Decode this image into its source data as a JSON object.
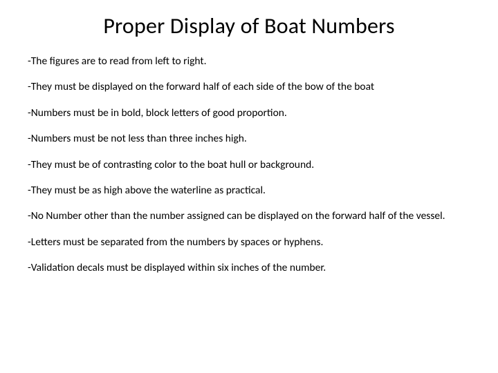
{
  "title": "Proper Display of Boat Numbers",
  "title_fontsize": 32,
  "title_color": "#000000",
  "body_fontsize": 15.5,
  "body_color": "#000000",
  "background_color": "#ffffff",
  "font_family": "Calibri",
  "bullets": [
    "-The figures are to read from left to right.",
    "-They must be displayed on the forward half of each side of the bow of the boat",
    "-Numbers must be in bold, block letters of good proportion.",
    "-Numbers must be not less than three inches high.",
    "-They must be of contrasting color to the boat hull or background.",
    "-They must be as high above the waterline as practical.",
    "-No Number other than the number assigned can be displayed on the forward half of the vessel.",
    "-Letters must be separated from the numbers by spaces or hyphens.",
    "-Validation decals must be displayed within six inches of the number."
  ]
}
